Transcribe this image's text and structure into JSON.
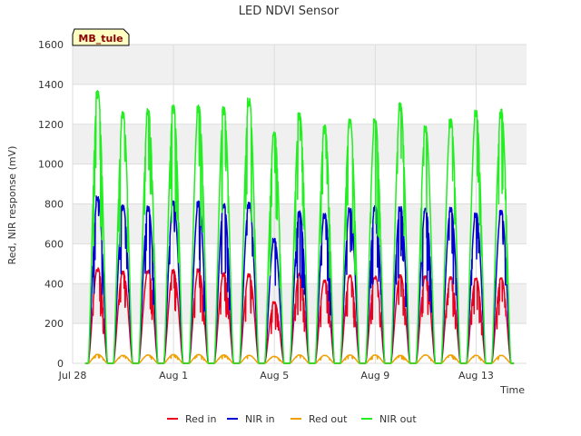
{
  "chart_data": {
    "type": "line",
    "title": "LED NDVI Sensor",
    "xlabel": "Time",
    "ylabel": "Red, NIR response (mV)",
    "ylim": [
      0,
      1600
    ],
    "xlim": [
      0,
      18.0
    ],
    "yticks": [
      0,
      200,
      400,
      600,
      800,
      1000,
      1200,
      1400,
      1600
    ],
    "xticks": [
      {
        "value": 0,
        "label": "Jul 28"
      },
      {
        "value": 4,
        "label": "Aug 1"
      },
      {
        "value": 8,
        "label": "Aug 5"
      },
      {
        "value": 12,
        "label": "Aug 9"
      },
      {
        "value": 16,
        "label": "Aug 13"
      }
    ],
    "grid": true,
    "legend_position": "bottom",
    "badge": "MB_tule",
    "day_start": 0.5,
    "day_count": 17,
    "series": [
      {
        "name": "Red in",
        "color": "#e8001c",
        "daily_peaks": [
          480,
          465,
          470,
          470,
          475,
          455,
          450,
          310,
          455,
          420,
          445,
          440,
          445,
          440,
          435,
          430,
          430
        ]
      },
      {
        "name": "NIR in",
        "color": "#0000d0",
        "daily_peaks": [
          840,
          795,
          790,
          815,
          815,
          805,
          810,
          630,
          765,
          755,
          785,
          790,
          795,
          780,
          785,
          760,
          770
        ]
      },
      {
        "name": "Red out",
        "color": "#f0a000",
        "daily_peaks": [
          45,
          40,
          42,
          44,
          44,
          42,
          40,
          35,
          42,
          40,
          42,
          42,
          40,
          42,
          42,
          40,
          40
        ]
      },
      {
        "name": "NIR out",
        "color": "#22ee22",
        "daily_peaks": [
          1370,
          1265,
          1280,
          1300,
          1300,
          1290,
          1335,
          1170,
          1260,
          1200,
          1230,
          1230,
          1310,
          1195,
          1230,
          1275,
          1280
        ]
      }
    ]
  }
}
